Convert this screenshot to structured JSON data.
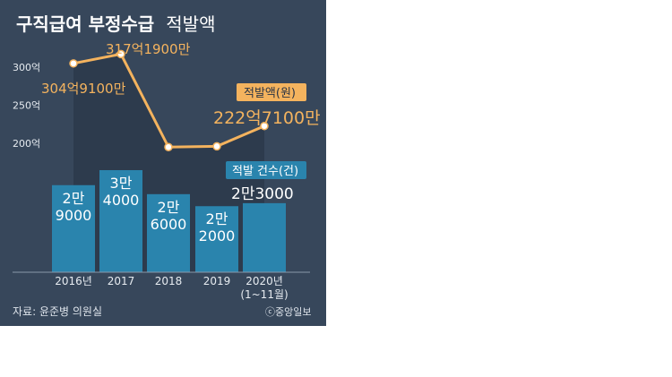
{
  "title": {
    "bold": "구직급여 부정수급",
    "normal": "적발액"
  },
  "source": "자료: 윤준병 의원실",
  "credit": "ⓒ중앙일보",
  "colors": {
    "background": "#37475b",
    "bar": "#2a84ad",
    "line": "#f4b35e",
    "count_legend": "#2a84ad",
    "amount_legend": "#f4b35e",
    "text": "#ffffff"
  },
  "chart_data": {
    "type": "bar+line",
    "categories": [
      "2016년",
      "2017",
      "2018",
      "2019",
      "2020년\n(1~11월)"
    ],
    "series": [
      {
        "name": "적발 건수(건)",
        "type": "bar",
        "values": [
          29000,
          34000,
          26000,
          22000,
          23000
        ],
        "labels": [
          "2만\n9000",
          "3만\n4000",
          "2만\n6000",
          "2만\n2000",
          "2만3000"
        ]
      },
      {
        "name": "적발액(원)",
        "type": "line",
        "values": [
          304.91,
          317.19,
          195,
          196,
          222.71
        ],
        "labels": [
          "304억9100만",
          "317억1900만",
          "",
          "",
          "222억7100만"
        ]
      }
    ],
    "y_ticks": [
      "300억",
      "250억",
      "200억"
    ],
    "y_tick_values": [
      300,
      250,
      200
    ],
    "legend": [
      "적발액(원)",
      "적발 건수(건)"
    ]
  }
}
